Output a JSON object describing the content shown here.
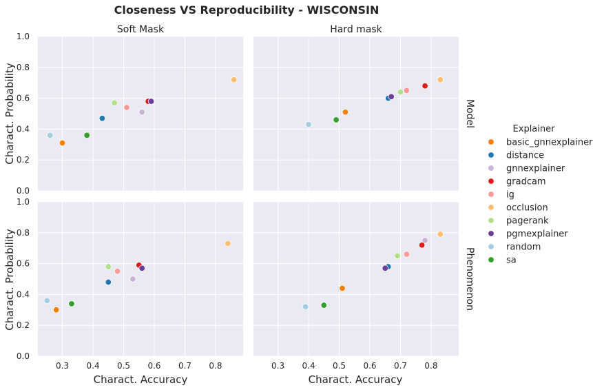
{
  "chart_data": {
    "type": "scatter",
    "title": "Closeness VS Reproducibility - WISCONSIN",
    "xlabel": "Charact. Accuracy",
    "ylabel": "Charact. Probability",
    "xlim": [
      0.22,
      0.89
    ],
    "ylim": [
      0.0,
      1.0
    ],
    "xticks": [
      "0.3",
      "0.4",
      "0.5",
      "0.6",
      "0.7",
      "0.8"
    ],
    "yticks": [
      "0.0",
      "0.2",
      "0.4",
      "0.6",
      "0.8",
      "1.0"
    ],
    "columns": [
      "Soft Mask",
      "Hard mask"
    ],
    "rows": [
      "Model",
      "Phenomenon"
    ],
    "grid": true,
    "legend": {
      "title": "Explainer",
      "placement": "right",
      "entries": [
        {
          "name": "basic_gnnexplainer",
          "color": "#f57f00"
        },
        {
          "name": "distance",
          "color": "#1f78b4"
        },
        {
          "name": "gnnexplainer",
          "color": "#cab2d6"
        },
        {
          "name": "gradcam",
          "color": "#e31a1c"
        },
        {
          "name": "ig",
          "color": "#fb9a99"
        },
        {
          "name": "occlusion",
          "color": "#fdbf6f"
        },
        {
          "name": "pagerank",
          "color": "#b2df8a"
        },
        {
          "name": "pgmexplainer",
          "color": "#6a3d9a"
        },
        {
          "name": "random",
          "color": "#a6cee3"
        },
        {
          "name": "sa",
          "color": "#33a02c"
        }
      ]
    },
    "panels": [
      {
        "row": "Model",
        "column": "Soft Mask",
        "points": {
          "basic_gnnexplainer": [
            0.3,
            0.31
          ],
          "distance": [
            0.43,
            0.47
          ],
          "gnnexplainer": [
            0.56,
            0.51
          ],
          "gradcam": [
            0.58,
            0.58
          ],
          "ig": [
            0.51,
            0.54
          ],
          "occlusion": [
            0.86,
            0.72
          ],
          "pagerank": [
            0.47,
            0.57
          ],
          "pgmexplainer": [
            0.59,
            0.58
          ],
          "random": [
            0.26,
            0.36
          ],
          "sa": [
            0.38,
            0.36
          ]
        }
      },
      {
        "row": "Model",
        "column": "Hard mask",
        "points": {
          "basic_gnnexplainer": [
            0.52,
            0.51
          ],
          "distance": [
            0.66,
            0.6
          ],
          "gnnexplainer": [
            0.78,
            0.68
          ],
          "gradcam": [
            0.78,
            0.68
          ],
          "ig": [
            0.72,
            0.65
          ],
          "occlusion": [
            0.83,
            0.72
          ],
          "pagerank": [
            0.7,
            0.64
          ],
          "pgmexplainer": [
            0.67,
            0.61
          ],
          "random": [
            0.4,
            0.43
          ],
          "sa": [
            0.49,
            0.46
          ]
        }
      },
      {
        "row": "Phenomenon",
        "column": "Soft Mask",
        "points": {
          "basic_gnnexplainer": [
            0.28,
            0.3
          ],
          "distance": [
            0.45,
            0.48
          ],
          "gnnexplainer": [
            0.53,
            0.5
          ],
          "gradcam": [
            0.55,
            0.59
          ],
          "ig": [
            0.48,
            0.55
          ],
          "occlusion": [
            0.84,
            0.73
          ],
          "pagerank": [
            0.45,
            0.58
          ],
          "pgmexplainer": [
            0.56,
            0.57
          ],
          "random": [
            0.25,
            0.36
          ],
          "sa": [
            0.33,
            0.34
          ]
        }
      },
      {
        "row": "Phenomenon",
        "column": "Hard mask",
        "points": {
          "basic_gnnexplainer": [
            0.51,
            0.44
          ],
          "distance": [
            0.66,
            0.58
          ],
          "gnnexplainer": [
            0.78,
            0.75
          ],
          "gradcam": [
            0.77,
            0.72
          ],
          "ig": [
            0.72,
            0.66
          ],
          "occlusion": [
            0.83,
            0.79
          ],
          "pagerank": [
            0.69,
            0.65
          ],
          "pgmexplainer": [
            0.65,
            0.57
          ],
          "random": [
            0.39,
            0.32
          ],
          "sa": [
            0.45,
            0.33
          ]
        }
      }
    ]
  }
}
